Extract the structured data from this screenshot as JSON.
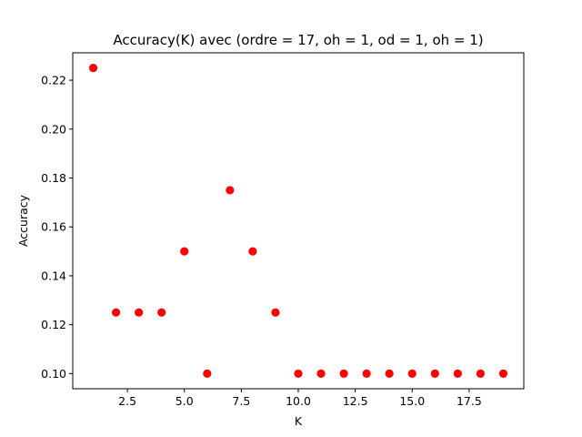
{
  "chart_data": {
    "type": "scatter",
    "title": "Accuracy(K) avec (ordre = 17, oh = 1, od = 1, oh = 1)",
    "xlabel": "K",
    "ylabel": "Accuracy",
    "xlim": [
      0.1,
      19.9
    ],
    "ylim": [
      0.0938,
      0.2312
    ],
    "x_ticks": [
      2.5,
      5.0,
      7.5,
      10.0,
      12.5,
      15.0,
      17.5
    ],
    "x_tick_labels": [
      "2.5",
      "5.0",
      "7.5",
      "10.0",
      "12.5",
      "15.0",
      "17.5"
    ],
    "y_ticks": [
      0.1,
      0.12,
      0.14,
      0.16,
      0.18,
      0.2,
      0.22
    ],
    "y_tick_labels": [
      "0.10",
      "0.12",
      "0.14",
      "0.16",
      "0.18",
      "0.20",
      "0.22"
    ],
    "grid": false,
    "marker_color": "#ff0000",
    "series": [
      {
        "x": [
          1,
          2,
          3,
          4,
          5,
          6,
          7,
          8,
          9,
          10,
          11,
          12,
          13,
          14,
          15,
          16,
          17,
          18,
          19
        ],
        "y": [
          0.225,
          0.125,
          0.125,
          0.125,
          0.15,
          0.1,
          0.175,
          0.15,
          0.125,
          0.1,
          0.1,
          0.1,
          0.1,
          0.1,
          0.1,
          0.1,
          0.1,
          0.1,
          0.1
        ]
      }
    ]
  }
}
